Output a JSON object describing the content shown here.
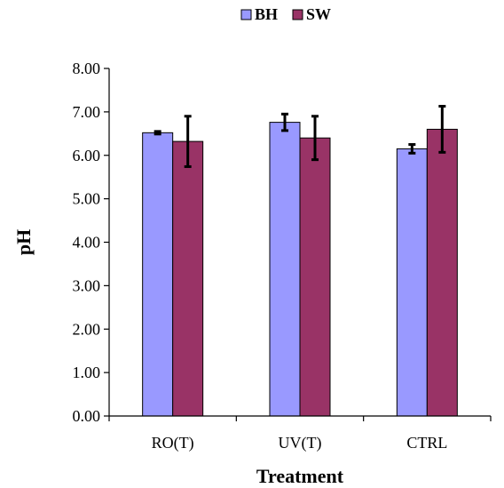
{
  "chart_data": {
    "type": "bar",
    "title": "",
    "xlabel": "Treatment",
    "ylabel": "pH",
    "categories": [
      "RO(T)",
      "UV(T)",
      "CTRL"
    ],
    "ylim": [
      0,
      8
    ],
    "yticks": [
      "0.00",
      "1.00",
      "2.00",
      "3.00",
      "4.00",
      "5.00",
      "6.00",
      "7.00",
      "8.00"
    ],
    "grid": false,
    "legend_position": "top-center",
    "series": [
      {
        "name": "BH",
        "color": "#9999ff",
        "values": [
          6.52,
          6.76,
          6.15
        ],
        "errors": [
          0.03,
          0.19,
          0.1
        ]
      },
      {
        "name": "SW",
        "color": "#993366",
        "values": [
          6.32,
          6.4,
          6.6
        ],
        "errors": [
          0.58,
          0.5,
          0.53
        ]
      }
    ]
  }
}
